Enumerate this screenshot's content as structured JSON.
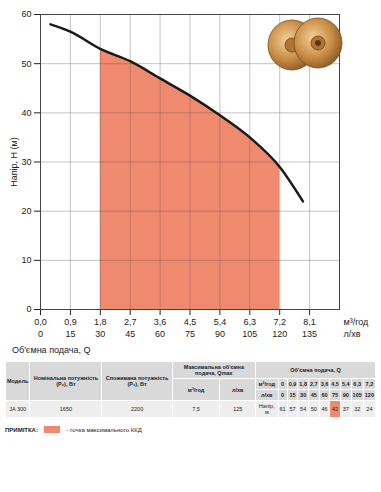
{
  "chart_data": {
    "type": "line",
    "xlabel": "Об'ємна подача, Q",
    "ylabel": "Напір, H (м)",
    "x_unit": "м³/год",
    "x2_unit": "л/хв",
    "x": [
      0.3,
      0.9,
      1.8,
      2.7,
      3.6,
      4.5,
      5.4,
      6.3,
      7.2,
      7.9
    ],
    "values": [
      58,
      56.5,
      53,
      50.5,
      47,
      43.5,
      39.5,
      35,
      29,
      22
    ],
    "color": "#1a1a1a",
    "shaded_range": [
      1.8,
      7.2
    ],
    "shaded_color": "#f08a6e",
    "xlim": [
      0,
      9
    ],
    "xticks": [
      {
        "value": 0,
        "label": "0,0"
      },
      {
        "value": 0.9,
        "label": "0,9"
      },
      {
        "value": 1.8,
        "label": "1,8"
      },
      {
        "value": 2.7,
        "label": "2,7"
      },
      {
        "value": 3.6,
        "label": "3,6"
      },
      {
        "value": 4.5,
        "label": "4,5"
      },
      {
        "value": 5.4,
        "label": "5,4"
      },
      {
        "value": 6.3,
        "label": "6,3"
      },
      {
        "value": 7.2,
        "label": "7,2"
      },
      {
        "value": 8.1,
        "label": "8,1"
      }
    ],
    "x2lim": [
      0,
      150
    ],
    "x2ticks": [
      0,
      15,
      30,
      45,
      60,
      75,
      90,
      105,
      120,
      135
    ],
    "ylim": [
      0,
      60
    ],
    "yticks": [
      0,
      10,
      20,
      30,
      40,
      50,
      60
    ],
    "grid": true
  },
  "table": {
    "columns": [
      "Модель",
      "Номінальна потужність (P₂), Вт",
      "Споживана потужність (P₁), Вт",
      "Максимальна об'ємна подача, Qmax",
      "Об'ємна подача, Q"
    ],
    "qmax_units": [
      "м³/год",
      "л/хв"
    ],
    "flow_rows": [
      [
        "м³/год",
        "0",
        "0,9",
        "1,8",
        "2,7",
        "3,6",
        "4,5",
        "5,4",
        "6,3",
        "7,2"
      ],
      [
        "л/хв",
        "0",
        "15",
        "30",
        "45",
        "60",
        "75",
        "90",
        "105",
        "120"
      ]
    ],
    "data_row": [
      "JA 300",
      "1650",
      "2200",
      "7,5",
      "125"
    ],
    "head_row": [
      "Напір, м",
      "61",
      "57",
      "54",
      "50",
      "46",
      "42",
      "37",
      "32",
      "24"
    ],
    "highlight_index": 6,
    "highlight_color": "#f08a6e"
  },
  "note": {
    "label": "ПРИМІТКА:",
    "text": "- точка максимального ККД",
    "color": "#f08a6e"
  }
}
